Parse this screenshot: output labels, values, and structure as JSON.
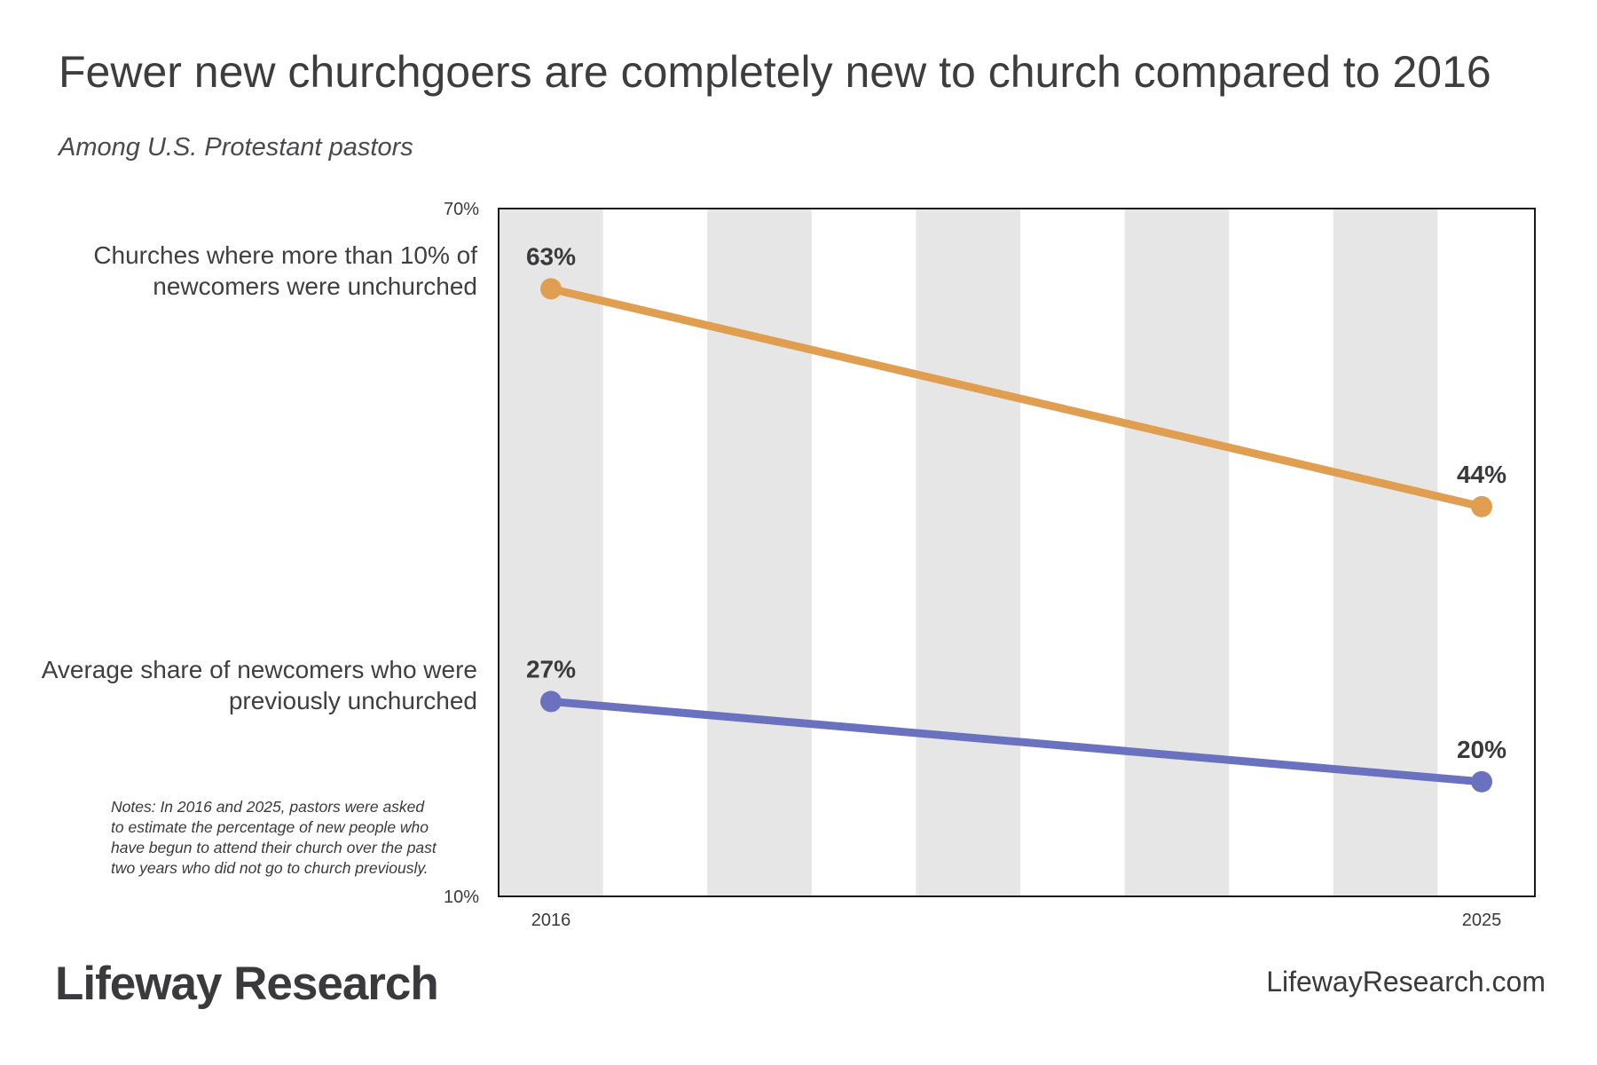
{
  "title": "Fewer new churchgoers are completely new to church compared to 2016",
  "subtitle": "Among U.S. Protestant pastors",
  "notes": "Notes: In 2016 and 2025, pastors were asked to estimate the percentage of new people who have begun to attend their church over the past two years who did not go to church previously.",
  "brand": "Lifeway Research",
  "site": "LifewayResearch.com",
  "chart_data": {
    "type": "line",
    "x": [
      2016,
      2025
    ],
    "x_tick_labels": [
      "2016",
      "2025"
    ],
    "ylim": [
      10,
      70
    ],
    "y_tick_labels": [
      "70%",
      "10%"
    ],
    "grid": "alternating vertical bands",
    "series": [
      {
        "name": "Churches where more than 10% of newcomers were unchurched",
        "values": [
          63,
          44
        ],
        "labels": [
          "63%",
          "44%"
        ],
        "color": "#e09f50"
      },
      {
        "name": "Average share of newcomers who were previously unchurched",
        "values": [
          27,
          20
        ],
        "labels": [
          "27%",
          "20%"
        ],
        "color": "#6a72bf"
      }
    ]
  }
}
